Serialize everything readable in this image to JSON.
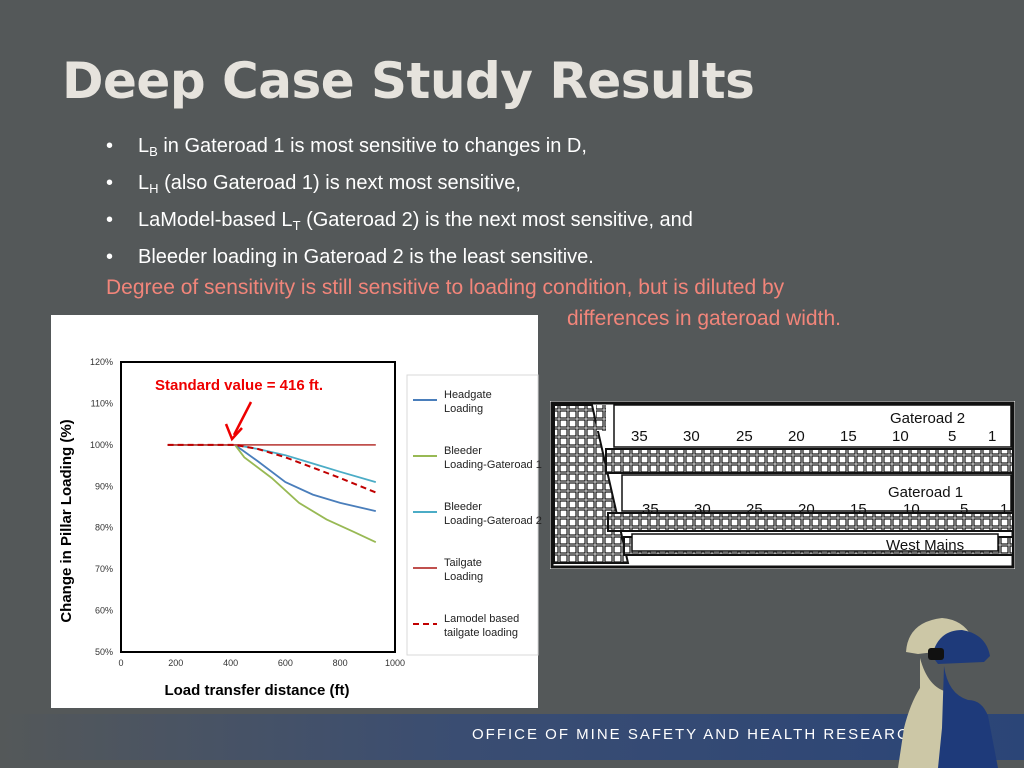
{
  "slide": {
    "title": "Deep Case Study Results",
    "bullets": [
      {
        "main": "L",
        "sub": "B",
        "rest": " in Gateroad 1 is most sensitive to changes in D,"
      },
      {
        "main": " L",
        "sub": "H",
        "rest": " (also Gateroad 1) is next most sensitive,"
      },
      {
        "main": "LaModel-based L",
        "sub": "T",
        "rest": " (Gateroad 2) is the next most sensitive, and"
      },
      {
        "main": "Bleeder loading in Gateroad 2 is the least sensitive.",
        "sub": "",
        "rest": ""
      }
    ],
    "bullet_symbol": "•",
    "note_line1": "Degree of sensitivity is still sensitive to loading condition, but is diluted by",
    "note_line2": "differences in gateroad width.",
    "note_color": "#f2857a",
    "footer": "OFFICE OF MINE SAFETY AND HEALTH RESEARCH"
  },
  "chart_data": {
    "type": "line",
    "xlabel": "Load transfer distance (ft)",
    "ylabel": "Change in Pillar Loading (%)",
    "xlim": [
      0,
      1000
    ],
    "ylim": [
      50,
      120
    ],
    "xticks": [
      "0",
      "200",
      "400",
      "600",
      "800",
      "1000"
    ],
    "yticks": [
      "50%",
      "60%",
      "70%",
      "80%",
      "90%",
      "100%",
      "110%",
      "120%"
    ],
    "annotation": "Standard value = 416 ft.",
    "annotation_x": 416,
    "series": [
      {
        "name": "Headgate Loading",
        "color": "#4a7ebb",
        "dash": false,
        "x": [
          170,
          400,
          416,
          500,
          600,
          700,
          800,
          930
        ],
        "y": [
          100,
          100,
          100,
          96,
          91,
          88,
          86,
          84
        ]
      },
      {
        "name": "Bleeder Loading-Gateroad 1",
        "color": "#98b954",
        "dash": false,
        "x": [
          170,
          400,
          416,
          450,
          550,
          650,
          750,
          850,
          930
        ],
        "y": [
          100,
          100,
          100,
          97,
          92,
          86,
          82,
          79,
          76.5
        ]
      },
      {
        "name": "Bleeder Loading-Gateroad 2",
        "color": "#4bacc6",
        "dash": false,
        "x": [
          170,
          400,
          416,
          500,
          600,
          700,
          800,
          930
        ],
        "y": [
          100,
          100,
          100,
          99,
          97.5,
          95.5,
          93.5,
          91
        ]
      },
      {
        "name": "Tailgate Loading",
        "color": "#c0504d",
        "dash": false,
        "x": [
          170,
          930
        ],
        "y": [
          100,
          100
        ]
      },
      {
        "name": "Lamodel based tailgate loading",
        "color": "#c00000",
        "dash": true,
        "x": [
          170,
          400,
          416,
          500,
          600,
          700,
          800,
          930
        ],
        "y": [
          100,
          100,
          100,
          99,
          97,
          94.5,
          92,
          88.5
        ]
      }
    ]
  },
  "mine_map": {
    "gateroad2_label": "Gateroad 2",
    "gateroad1_label": "Gateroad 1",
    "west_mains_label": "West Mains",
    "gateroad2_numbers": [
      "35",
      "30",
      "25",
      "20",
      "15",
      "10",
      "5",
      "1"
    ],
    "gateroad1_numbers": [
      "35",
      "30",
      "25",
      "20",
      "15",
      "10",
      "5",
      "1"
    ]
  }
}
